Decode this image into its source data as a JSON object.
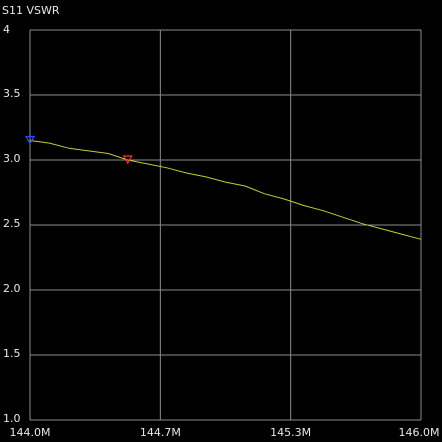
{
  "chart_data": {
    "type": "line",
    "title": "S11 VSWR",
    "x": [
      144.0,
      144.1,
      144.2,
      144.3,
      144.4,
      144.5,
      144.6,
      144.7,
      144.8,
      144.9,
      145.0,
      145.1,
      145.2,
      145.3,
      145.4,
      145.5,
      145.6,
      145.7,
      145.8,
      145.9,
      146.0
    ],
    "series": [
      {
        "color": "#c8c83c",
        "values": [
          3.15,
          3.13,
          3.09,
          3.07,
          3.05,
          3.0,
          2.97,
          2.94,
          2.9,
          2.87,
          2.83,
          2.8,
          2.74,
          2.7,
          2.65,
          2.61,
          2.56,
          2.51,
          2.47,
          2.43,
          2.39
        ]
      }
    ],
    "markers": [
      {
        "x": 144.0,
        "value": 3.15,
        "color": "#3050ff"
      },
      {
        "x": 144.5,
        "value": 3.0,
        "color": "#ff3030"
      }
    ],
    "xlim": [
      144.0,
      146.0
    ],
    "xticks": [
      {
        "value": 144.0,
        "label": "144.0M"
      },
      {
        "value": 144.6667,
        "label": "144.7M"
      },
      {
        "value": 145.3333,
        "label": "145.3M"
      },
      {
        "value": 146.0,
        "label": "146.0M"
      }
    ],
    "ylim": [
      1,
      4
    ],
    "yticks": [
      {
        "value": 1,
        "label": "1.0"
      },
      1.5,
      {
        "value": 2,
        "label": "2.0"
      },
      2.5,
      {
        "value": 3,
        "label": "3.0"
      },
      3.5,
      4
    ],
    "grid": true,
    "grid_color": "#8c8c8c"
  }
}
